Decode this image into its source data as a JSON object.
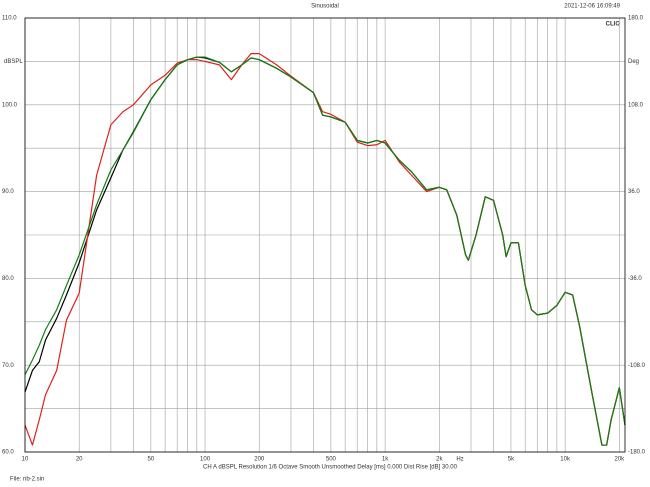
{
  "chart_data": {
    "type": "line",
    "title": "Sinusoidal",
    "timestamp": "2021-12-06 16:09:49",
    "brand": "CLIO",
    "ylabel": "dBSPL",
    "y2label": "Deg",
    "xlabel": "Hz",
    "footer": "CH A   dBSPL   Resolution 1/6 Octave   Smooth Unsmoothed   Delay [ms] 0.000   Dist Rise [dB] 30.00",
    "file": "File: nb-2.sin",
    "xscale": "log",
    "grid": true,
    "xlim": [
      10,
      21500
    ],
    "xticks": [
      10,
      20,
      50,
      100,
      200,
      500,
      {
        "value": 1000,
        "label": "1k"
      },
      {
        "value": 2000,
        "label": "2k"
      },
      {
        "value": 5000,
        "label": "5k"
      },
      {
        "value": 10000,
        "label": "10k"
      },
      {
        "value": 20000,
        "label": "20k"
      }
    ],
    "xminor": [
      30,
      40,
      60,
      70,
      80,
      90,
      300,
      400,
      600,
      700,
      800,
      900,
      3000,
      4000,
      6000,
      7000,
      8000,
      9000
    ],
    "ylim": [
      60,
      110
    ],
    "yticks": [
      {
        "value": 60,
        "label": "60.0"
      },
      {
        "value": 70,
        "label": "70.0"
      },
      {
        "value": 80,
        "label": "80.0"
      },
      {
        "value": 90,
        "label": "90.0"
      },
      {
        "value": 100,
        "label": "100.0"
      },
      {
        "value": 110,
        "label": "110.0"
      }
    ],
    "yminor": [
      65,
      75,
      85,
      95,
      105
    ],
    "y2lim": [
      -180,
      180
    ],
    "y2ticks": [
      {
        "value": -180,
        "label": "-180.0"
      },
      {
        "value": -108,
        "label": "-108.0"
      },
      {
        "value": -36,
        "label": "-36.0"
      },
      {
        "value": 36,
        "label": "36.0"
      },
      {
        "value": 108,
        "label": "108.0"
      },
      {
        "value": 180,
        "label": "180.0"
      }
    ],
    "x": [
      10,
      11,
      12,
      13,
      15,
      17,
      20,
      25,
      30,
      35,
      40,
      50,
      60,
      70,
      80,
      90,
      100,
      120,
      140,
      160,
      180,
      200,
      250,
      300,
      400,
      450,
      500,
      600,
      700,
      800,
      900,
      1000,
      1200,
      1400,
      1700,
      2000,
      2200,
      2500,
      2800,
      2900,
      3200,
      3600,
      4000,
      4500,
      4700,
      5000,
      5500,
      6000,
      6500,
      7000,
      8000,
      9000,
      10000,
      11000,
      12000,
      14000,
      16000,
      17000,
      18000,
      20000,
      21500
    ],
    "series": [
      {
        "color": "#000000",
        "values": [
          66.9,
          69.4,
          70.4,
          72.9,
          75.4,
          78.1,
          81.8,
          87.9,
          91.6,
          94.8,
          96.9,
          100.6,
          102.9,
          104.6,
          105.2,
          105.5,
          105.4,
          104.9,
          103.8,
          104.6,
          105.4,
          105.2,
          104.2,
          103.2,
          101.4,
          98.8,
          98.6,
          98.0,
          95.9,
          95.6,
          95.9,
          95.6,
          93.6,
          92.3,
          90.2,
          90.5,
          90.2,
          87.3,
          82.7,
          82.1,
          85.0,
          89.4,
          89.0,
          85.0,
          82.5,
          84.1,
          84.1,
          79.2,
          76.4,
          75.8,
          76.0,
          76.9,
          78.4,
          78.1,
          74.6,
          67.1,
          60.8,
          60.8,
          63.7,
          67.4,
          63.1
        ]
      },
      {
        "color": "#e0201c",
        "values": [
          63.1,
          60.8,
          63.7,
          66.6,
          69.4,
          75.2,
          78.3,
          91.9,
          97.7,
          99.2,
          100.0,
          102.3,
          103.4,
          104.8,
          105.2,
          105.2,
          105.0,
          104.6,
          102.9,
          104.6,
          105.9,
          105.9,
          104.6,
          103.3,
          101.4,
          99.2,
          98.9,
          98.0,
          95.7,
          95.3,
          95.4,
          95.9,
          93.4,
          91.9,
          90.0,
          90.5,
          90.2,
          87.3,
          82.7,
          82.1,
          85.0,
          89.4,
          89.0,
          85.0,
          82.5,
          84.1,
          84.1,
          79.2,
          76.4,
          75.8,
          76.0,
          76.9,
          78.4,
          78.1,
          74.6,
          67.1,
          60.8,
          60.8,
          63.7,
          67.4,
          63.1
        ]
      },
      {
        "color": "#128012",
        "values": [
          68.9,
          70.6,
          72.3,
          74.1,
          76.4,
          79.2,
          82.7,
          88.5,
          92.5,
          94.8,
          96.8,
          100.6,
          102.9,
          104.6,
          105.2,
          105.5,
          105.5,
          104.9,
          103.8,
          104.6,
          105.4,
          105.2,
          104.2,
          103.2,
          101.4,
          98.8,
          98.6,
          98.0,
          95.9,
          95.6,
          95.9,
          95.6,
          93.6,
          92.3,
          90.2,
          90.5,
          90.2,
          87.3,
          82.7,
          82.1,
          85.0,
          89.4,
          89.0,
          85.0,
          82.5,
          84.1,
          84.1,
          79.2,
          76.4,
          75.8,
          76.0,
          76.9,
          78.4,
          78.1,
          74.6,
          67.1,
          60.8,
          60.8,
          63.7,
          67.4,
          63.1
        ]
      }
    ]
  }
}
